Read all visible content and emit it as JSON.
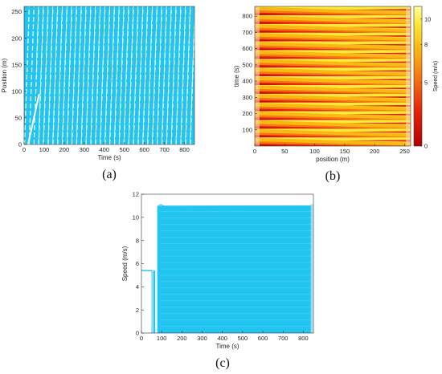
{
  "chart_data": [
    {
      "id": "a",
      "type": "line",
      "caption": "(a)",
      "xlabel": "Time (s)",
      "ylabel": "Position (m)",
      "xlim": [
        0,
        850
      ],
      "ylim": [
        0,
        260
      ],
      "xticks": [
        0,
        100,
        200,
        300,
        400,
        500,
        600,
        700,
        800
      ],
      "yticks": [
        0,
        50,
        100,
        150,
        200,
        250
      ],
      "line_color": "#22c4f0",
      "trajectory_count": 16,
      "road_length": 260,
      "note_values": {
        "first_period": 90,
        "slope_m_per_s": 11
      }
    },
    {
      "id": "b",
      "type": "heatmap",
      "caption": "(b)",
      "xlabel": "position (m)",
      "ylabel": "time (s)",
      "colorbar_label": "Speed (m/s)",
      "xlim": [
        0,
        260
      ],
      "ylim": [
        0,
        860
      ],
      "xticks": [
        0,
        50,
        100,
        150,
        200,
        250
      ],
      "yticks": [
        100,
        200,
        300,
        400,
        500,
        600,
        700,
        800
      ],
      "colorbar_ticks": [
        0,
        5,
        8,
        10
      ],
      "colorbar_range": [
        0,
        11
      ],
      "colormap": [
        "#b30000",
        "#e8220a",
        "#f57a10",
        "#fbb814",
        "#fde93c",
        "#ffffa0"
      ],
      "band_count": 16
    },
    {
      "id": "c",
      "type": "line",
      "caption": "(c)",
      "xlabel": "Time (s)",
      "ylabel": "Speed (m/s)",
      "xlim": [
        0,
        850
      ],
      "ylim": [
        0,
        12
      ],
      "xticks": [
        0,
        100,
        200,
        300,
        400,
        500,
        600,
        700,
        800
      ],
      "yticks": [
        0,
        2,
        4,
        6,
        8,
        10,
        12
      ],
      "line_color": "#22c4f0",
      "initial_speed": 5.4,
      "steady_speed": 11,
      "transition_start": 60,
      "transition_end": 90,
      "end_time": 840
    }
  ]
}
